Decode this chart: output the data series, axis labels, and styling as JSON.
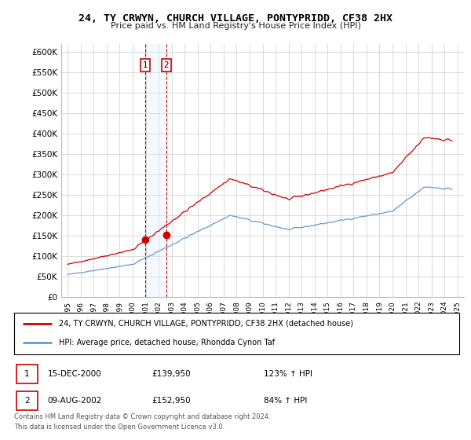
{
  "title": "24, TY CRWYN, CHURCH VILLAGE, PONTYPRIDD, CF38 2HX",
  "subtitle": "Price paid vs. HM Land Registry's House Price Index (HPI)",
  "legend_line1": "24, TY CRWYN, CHURCH VILLAGE, PONTYPRIDD, CF38 2HX (detached house)",
  "legend_line2": "HPI: Average price, detached house, Rhondda Cynon Taf",
  "annotation1_label": "1",
  "annotation1_date": "15-DEC-2000",
  "annotation1_price": "£139,950",
  "annotation1_hpi": "123% ↑ HPI",
  "annotation2_label": "2",
  "annotation2_date": "09-AUG-2002",
  "annotation2_price": "£152,950",
  "annotation2_hpi": "84% ↑ HPI",
  "footer": "Contains HM Land Registry data © Crown copyright and database right 2024.\nThis data is licensed under the Open Government Licence v3.0.",
  "red_color": "#cc0000",
  "blue_color": "#6699cc",
  "shading_color": "#ddeeff",
  "purchase1_year": 2000.958,
  "purchase1_price": 139950,
  "purchase2_year": 2002.583,
  "purchase2_price": 152950,
  "yticks": [
    0,
    50000,
    100000,
    150000,
    200000,
    250000,
    300000,
    350000,
    400000,
    450000,
    500000,
    550000,
    600000
  ],
  "ytick_labels": [
    "£0",
    "£50K",
    "£100K",
    "£150K",
    "£200K",
    "£250K",
    "£300K",
    "£350K",
    "£400K",
    "£450K",
    "£500K",
    "£550K",
    "£600K"
  ],
  "xtick_years": [
    1995,
    1996,
    1997,
    1998,
    1999,
    2000,
    2001,
    2002,
    2003,
    2004,
    2005,
    2006,
    2007,
    2008,
    2009,
    2010,
    2011,
    2012,
    2013,
    2014,
    2015,
    2016,
    2017,
    2018,
    2019,
    2020,
    2021,
    2022,
    2023,
    2024,
    2025
  ],
  "xlim": [
    1994.5,
    2025.5
  ],
  "ylim": [
    0,
    620000
  ]
}
